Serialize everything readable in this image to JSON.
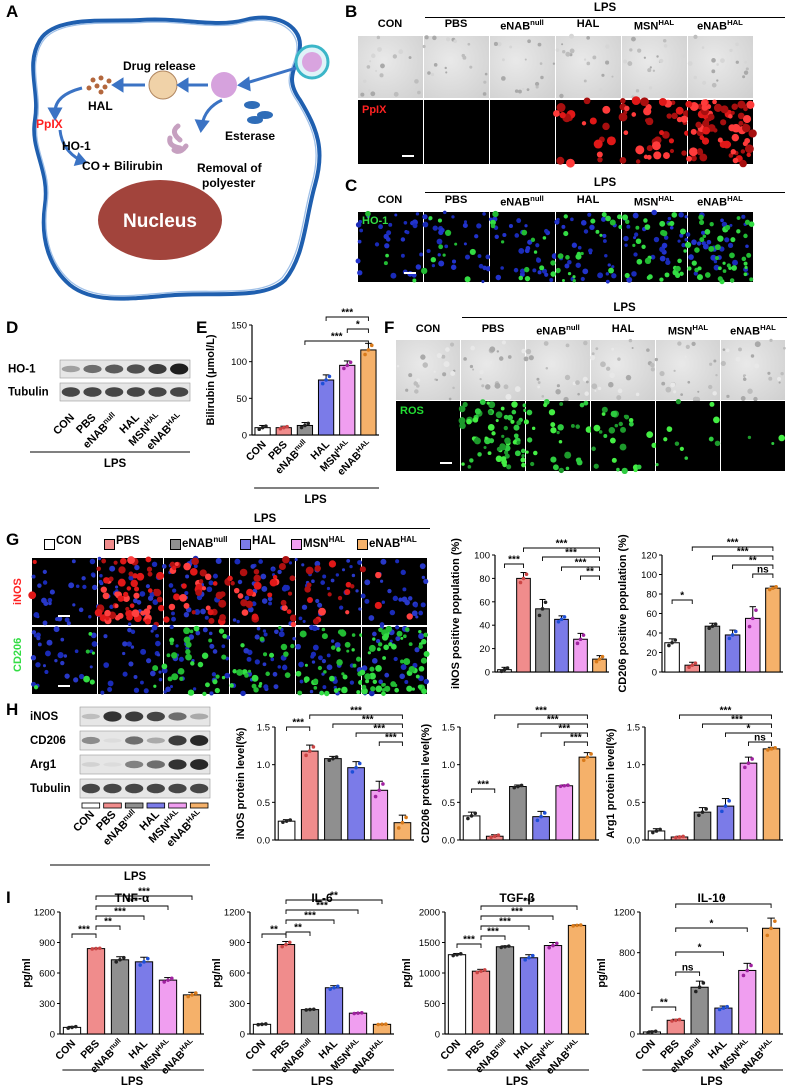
{
  "labels": {
    "A": "A",
    "B": "B",
    "C": "C",
    "D": "D",
    "E": "E",
    "F": "F",
    "G": "G",
    "H": "H",
    "I": "I"
  },
  "groups": [
    "CON",
    "PBS",
    "eNAB",
    "HAL",
    "MSN",
    "eNAB"
  ],
  "sup": [
    "",
    "",
    "null",
    "",
    "HAL",
    "HAL"
  ],
  "lps": "LPS",
  "schematic": {
    "drug_release": "Drug release",
    "hal": "HAL",
    "ppix": "PpIX",
    "ho1": "HO-1",
    "co": "CO",
    "plus": "+",
    "bilirubin": "Bilirubin",
    "esterase": "Esterase",
    "removal1": "Removal of",
    "removal2": "polyester",
    "nucleus": "Nucleus"
  },
  "stains": {
    "ppix": "PpIX",
    "ho1": "HO-1",
    "ros": "ROS",
    "inos": "iNOS",
    "cd206": "CD206"
  },
  "western_d": {
    "rows": [
      "HO-1",
      "Tubulin"
    ],
    "intensity": [
      [
        0.35,
        0.6,
        0.7,
        0.75,
        0.85,
        1.0
      ],
      [
        0.8,
        0.8,
        0.8,
        0.8,
        0.8,
        0.8
      ]
    ]
  },
  "western_h": {
    "rows": [
      "iNOS",
      "CD206",
      "Arg1",
      "Tubulin"
    ],
    "intensity": [
      [
        0.2,
        0.9,
        0.85,
        0.8,
        0.6,
        0.3
      ],
      [
        0.45,
        0.05,
        0.6,
        0.3,
        0.85,
        0.95
      ],
      [
        0.1,
        0.05,
        0.5,
        0.6,
        0.9,
        0.95
      ],
      [
        0.8,
        0.8,
        0.8,
        0.8,
        0.8,
        0.8
      ]
    ]
  },
  "colors": {
    "CON": "#ffffff",
    "PBS": "#f08c8c",
    "eNAB": "#8f8f8f",
    "HAL": "#7b7be8",
    "MSN": "#f09ef0",
    "eNABHAL": "#f5b16a",
    "cell_membrane": "#1f5faf",
    "arrow": "#3b73c4",
    "nucleus": "#a2443c",
    "ppix_text": "#ff2020",
    "stain_green": "#22dd33",
    "stain_red": "#ff2222"
  },
  "chart_data": [
    {
      "id": "E",
      "type": "bar",
      "categories": [
        "CON",
        "PBS",
        "eNABnull",
        "HAL",
        "MSNHAL",
        "eNABHAL"
      ],
      "values": [
        10,
        10,
        13,
        75,
        95,
        116
      ],
      "errors": [
        3,
        2,
        4,
        7,
        6,
        9
      ],
      "ylabel": "Bilirubin (μmol/L)",
      "ylim": [
        0,
        150
      ],
      "yticks": [
        0,
        50,
        100,
        150
      ],
      "sig": [
        [
          "3",
          "5",
          "***"
        ],
        [
          "4",
          "5",
          "*"
        ],
        [
          "2",
          "5",
          "***"
        ]
      ]
    },
    {
      "id": "G1",
      "type": "bar",
      "categories": [
        "CON",
        "PBS",
        "eNABnull",
        "HAL",
        "MSNHAL",
        "eNABHAL"
      ],
      "values": [
        2,
        80,
        54,
        45,
        28,
        11
      ],
      "errors": [
        2,
        5,
        8,
        3,
        5,
        3
      ],
      "ylabel": "iNOS positive population (%)",
      "ylim": [
        0,
        100
      ],
      "yticks": [
        0,
        20,
        40,
        60,
        80,
        100
      ],
      "sig": [
        [
          "0",
          "1",
          "***"
        ],
        [
          "1",
          "5",
          "***"
        ],
        [
          "2",
          "5",
          "***"
        ],
        [
          "3",
          "5",
          "***"
        ],
        [
          "4",
          "5",
          "**"
        ]
      ]
    },
    {
      "id": "G2",
      "type": "bar",
      "categories": [
        "CON",
        "PBS",
        "eNABnull",
        "HAL",
        "MSNHAL",
        "eNABHAL"
      ],
      "values": [
        30,
        7,
        47,
        38,
        55,
        86
      ],
      "errors": [
        4,
        3,
        3,
        5,
        12,
        2
      ],
      "ylabel": "CD206 positive population (%)",
      "ylim": [
        0,
        120
      ],
      "yticks": [
        0,
        20,
        40,
        60,
        80,
        100,
        120
      ],
      "sig": [
        [
          "0",
          "1",
          "*"
        ],
        [
          "1",
          "5",
          "***"
        ],
        [
          "2",
          "5",
          "***"
        ],
        [
          "3",
          "5",
          "**"
        ],
        [
          "4",
          "5",
          "ns"
        ]
      ]
    },
    {
      "id": "H1",
      "type": "bar",
      "categories": [
        "CON",
        "PBS",
        "eNABnull",
        "HAL",
        "MSNHAL",
        "eNABHAL"
      ],
      "values": [
        0.25,
        1.18,
        1.08,
        0.96,
        0.66,
        0.23
      ],
      "errors": [
        0.02,
        0.08,
        0.03,
        0.08,
        0.12,
        0.1
      ],
      "ylabel": "iNOS protein level(%)",
      "ylim": [
        0,
        1.5
      ],
      "yticks": [
        0.0,
        0.5,
        1.0,
        1.5
      ],
      "sig": [
        [
          "0",
          "1",
          "***"
        ],
        [
          "1",
          "5",
          "***"
        ],
        [
          "2",
          "5",
          "***"
        ],
        [
          "3",
          "5",
          "***"
        ],
        [
          "4",
          "5",
          "***"
        ]
      ]
    },
    {
      "id": "H2",
      "type": "bar",
      "categories": [
        "CON",
        "PBS",
        "eNABnull",
        "HAL",
        "MSNHAL",
        "eNABHAL"
      ],
      "values": [
        0.32,
        0.05,
        0.71,
        0.31,
        0.72,
        1.1
      ],
      "errors": [
        0.05,
        0.02,
        0.02,
        0.07,
        0.01,
        0.06
      ],
      "ylabel": "CD206 protein level(%)",
      "ylim": [
        0,
        1.5
      ],
      "yticks": [
        0.0,
        0.5,
        1.0,
        1.5
      ],
      "sig": [
        [
          "0",
          "1",
          "***"
        ],
        [
          "1",
          "5",
          "***"
        ],
        [
          "2",
          "5",
          "***"
        ],
        [
          "3",
          "5",
          "***"
        ],
        [
          "4",
          "5",
          "***"
        ]
      ]
    },
    {
      "id": "H3",
      "type": "bar",
      "categories": [
        "CON",
        "PBS",
        "eNABnull",
        "HAL",
        "MSNHAL",
        "eNABHAL"
      ],
      "values": [
        0.12,
        0.04,
        0.37,
        0.45,
        1.02,
        1.21
      ],
      "errors": [
        0.03,
        0.01,
        0.06,
        0.1,
        0.08,
        0.02
      ],
      "ylabel": "Arg1 protein level(%)",
      "ylim": [
        0,
        1.5
      ],
      "yticks": [
        0.0,
        0.5,
        1.0,
        1.5
      ],
      "sig": [
        [
          "1",
          "5",
          "***"
        ],
        [
          "2",
          "5",
          "***"
        ],
        [
          "3",
          "5",
          "*"
        ],
        [
          "4",
          "5",
          "ns"
        ]
      ]
    },
    {
      "id": "I1",
      "type": "bar",
      "title": "TNF-α",
      "categories": [
        "CON",
        "PBS",
        "eNABnull",
        "HAL",
        "MSNHAL",
        "eNABHAL"
      ],
      "values": [
        65,
        840,
        730,
        710,
        530,
        385
      ],
      "errors": [
        10,
        5,
        30,
        45,
        25,
        25
      ],
      "ylabel": "pg/ml",
      "ylim": [
        0,
        1200
      ],
      "yticks": [
        0,
        300,
        600,
        900,
        1200
      ],
      "sig": [
        [
          "0",
          "1",
          "***"
        ],
        [
          "1",
          "2",
          "**"
        ],
        [
          "1",
          "3",
          "***"
        ],
        [
          "1",
          "4",
          "***"
        ],
        [
          "1",
          "5",
          "***"
        ]
      ]
    },
    {
      "id": "I2",
      "type": "bar",
      "title": "IL-6",
      "categories": [
        "CON",
        "PBS",
        "eNABnull",
        "HAL",
        "MSNHAL",
        "eNABHAL"
      ],
      "values": [
        95,
        880,
        240,
        455,
        205,
        95
      ],
      "errors": [
        5,
        30,
        5,
        20,
        5,
        3
      ],
      "ylabel": "pg/ml",
      "ylim": [
        0,
        1200
      ],
      "yticks": [
        0,
        300,
        600,
        900,
        1200
      ],
      "sig": [
        [
          "0",
          "1",
          "**"
        ],
        [
          "1",
          "2",
          "**"
        ],
        [
          "1",
          "3",
          "***"
        ],
        [
          "1",
          "4",
          "***"
        ],
        [
          "1",
          "5",
          "**"
        ]
      ]
    },
    {
      "id": "I3",
      "type": "bar",
      "title": "TGF-β",
      "categories": [
        "CON",
        "PBS",
        "eNABnull",
        "HAL",
        "MSNHAL",
        "eNABHAL"
      ],
      "values": [
        1300,
        1030,
        1430,
        1250,
        1450,
        1780
      ],
      "errors": [
        20,
        30,
        15,
        50,
        50,
        10
      ],
      "ylabel": "pg/ml",
      "ylim": [
        0,
        2000
      ],
      "yticks": [
        0,
        500,
        1000,
        1500,
        2000
      ],
      "sig": [
        [
          "0",
          "1",
          "***"
        ],
        [
          "1",
          "2",
          "***"
        ],
        [
          "1",
          "3",
          "***"
        ],
        [
          "1",
          "4",
          "***"
        ],
        [
          "1",
          "5",
          "***"
        ]
      ]
    },
    {
      "id": "I4",
      "type": "bar",
      "title": "IL-10",
      "categories": [
        "CON",
        "PBS",
        "eNABnull",
        "HAL",
        "MSNHAL",
        "eNABHAL"
      ],
      "values": [
        20,
        135,
        460,
        255,
        625,
        1040
      ],
      "errors": [
        10,
        10,
        60,
        20,
        70,
        100
      ],
      "ylabel": "pg/ml",
      "ylim": [
        0,
        1200
      ],
      "yticks": [
        0,
        400,
        800,
        1200
      ],
      "sig": [
        [
          "0",
          "1",
          "**"
        ],
        [
          "1",
          "2",
          "ns"
        ],
        [
          "1",
          "3",
          "*"
        ],
        [
          "1",
          "4",
          "*"
        ],
        [
          "1",
          "5",
          "*"
        ]
      ]
    }
  ]
}
